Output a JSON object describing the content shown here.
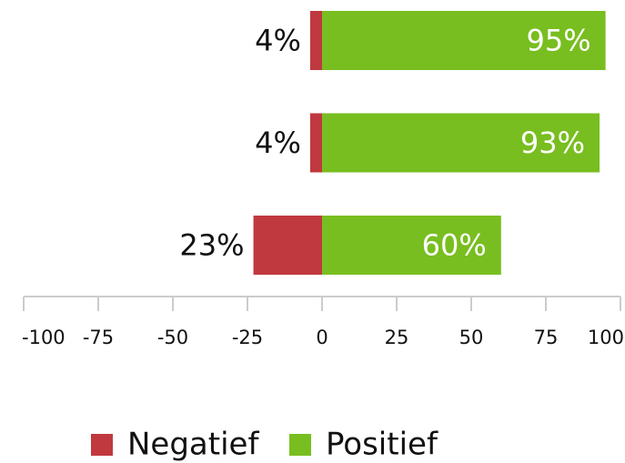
{
  "chart_data": {
    "type": "diverging_bar",
    "categories": [
      null,
      null,
      null
    ],
    "series": [
      {
        "name": "Negatief",
        "color": "#c0393f",
        "values": [
          -4,
          -4,
          -23
        ],
        "value_labels": [
          "4%",
          "4%",
          "23%"
        ]
      },
      {
        "name": "Positief",
        "color": "#78be20",
        "values": [
          95,
          93,
          60
        ],
        "value_labels": [
          "95%",
          "93%",
          "60%"
        ]
      }
    ],
    "xlim": [
      -100,
      100
    ],
    "xticks": [
      -100,
      -75,
      -50,
      -25,
      0,
      25,
      50,
      75,
      100
    ],
    "legend": "bottom"
  }
}
